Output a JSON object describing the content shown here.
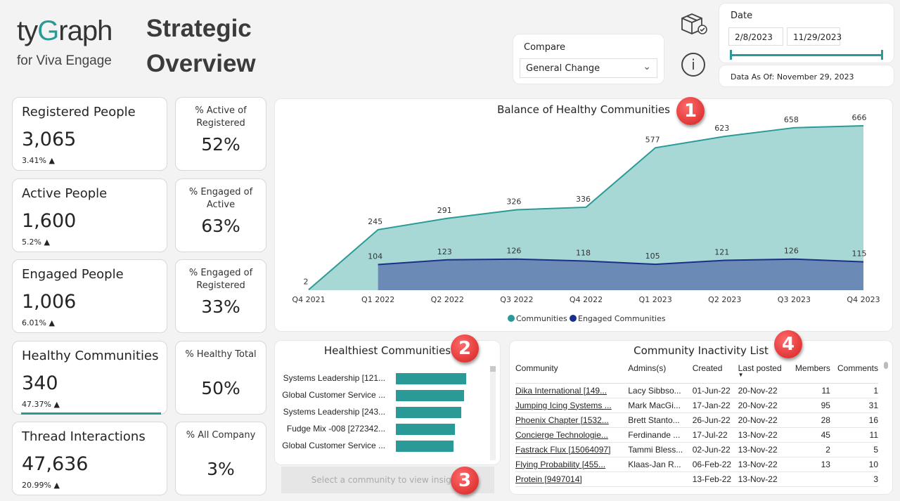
{
  "logo": {
    "brand_prefix": "ty",
    "brand_g": "G",
    "brand_suffix": "raph",
    "subtitle": "for Viva Engage"
  },
  "page_title": {
    "line1": "Strategic",
    "line2": "Overview"
  },
  "compare": {
    "label": "Compare",
    "value": "General Change"
  },
  "date": {
    "label": "Date",
    "start": "2/8/2023",
    "end": "11/29/2023",
    "slider_fraction": [
      0,
      1
    ],
    "as_of": "Data As Of: November 29, 2023"
  },
  "icons": {
    "package": "package-check-icon",
    "info": "info-icon"
  },
  "kpis": [
    {
      "label": "Registered People",
      "value": "3,065",
      "delta": "3.41% ▲",
      "pct_label": "% Active of Registered",
      "pct_value": "52%"
    },
    {
      "label": "Active People",
      "value": "1,600",
      "delta": "5.2% ▲",
      "pct_label": "% Engaged of Active",
      "pct_value": "63%"
    },
    {
      "label": "Engaged People",
      "value": "1,006",
      "delta": "6.01% ▲",
      "pct_label": "% Engaged of Registered",
      "pct_value": "33%"
    },
    {
      "label": "Healthy Communities",
      "value": "340",
      "delta": "47.37% ▲",
      "pct_label": "% Healthy Total",
      "pct_value": "50%"
    },
    {
      "label": "Thread Interactions",
      "value": "47,636",
      "delta": "20.99% ▲",
      "pct_label": "% All Company",
      "pct_value": "3%"
    }
  ],
  "badges": [
    "1",
    "2",
    "3",
    "4"
  ],
  "chart_data": {
    "type": "area",
    "title": "Balance of Healthy Communities",
    "categories": [
      "Q4 2021",
      "Q1 2022",
      "Q2 2022",
      "Q3 2022",
      "Q4 2022",
      "Q1 2023",
      "Q2 2023",
      "Q3 2023",
      "Q4 2023"
    ],
    "series": [
      {
        "name": "Communities",
        "color": "#2a9a96",
        "values": [
          2,
          245,
          291,
          326,
          336,
          577,
          623,
          658,
          666
        ]
      },
      {
        "name": "Engaged Communities",
        "color": "#1a2f8a",
        "values": [
          null,
          104,
          123,
          126,
          118,
          105,
          121,
          126,
          115
        ]
      }
    ],
    "ylim": [
      0,
      666
    ],
    "legend": "bottom",
    "grid": false
  },
  "healthiest": {
    "title": "Healthiest Communities",
    "items": [
      {
        "label": "Systems Leadership [121...",
        "value": 100
      },
      {
        "label": "Global Customer Service ...",
        "value": 97
      },
      {
        "label": "Systems Leadership [243...",
        "value": 93
      },
      {
        "label": "Fudge Mix -008 [272342...",
        "value": 84
      },
      {
        "label": "Global Customer Service ...",
        "value": 82
      }
    ],
    "insight_button": "Select a community to view insights"
  },
  "inactivity": {
    "title": "Community Inactivity List",
    "columns": [
      "Community",
      "Admins(s)",
      "Created",
      "Last posted",
      "Members",
      "Comments"
    ],
    "rows": [
      [
        "Dika International [149...",
        "Lacy Sibbso...",
        "01-Jun-22",
        "20-Nov-22",
        "11",
        "1"
      ],
      [
        "Jumping Icing Systems ...",
        "Mark MacGi...",
        "17-Jan-22",
        "20-Nov-22",
        "95",
        "31"
      ],
      [
        "Phoenix Chapter [1532...",
        "Brett Stanto...",
        "26-Jun-22",
        "20-Nov-22",
        "28",
        "16"
      ],
      [
        "Concierge Technologie...",
        "Ferdinande ...",
        "17-Jul-22",
        "13-Nov-22",
        "45",
        "11"
      ],
      [
        "Fastrack Flux [15064097]",
        "Tammi Bless...",
        "02-Jun-22",
        "13-Nov-22",
        "2",
        "5"
      ],
      [
        "Flying Probability [455...",
        "Klaas-Jan R...",
        "06-Feb-22",
        "13-Nov-22",
        "13",
        "10"
      ],
      [
        "Protein [9497014]",
        "",
        "13-Feb-22",
        "13-Nov-22",
        "",
        "3"
      ]
    ]
  }
}
